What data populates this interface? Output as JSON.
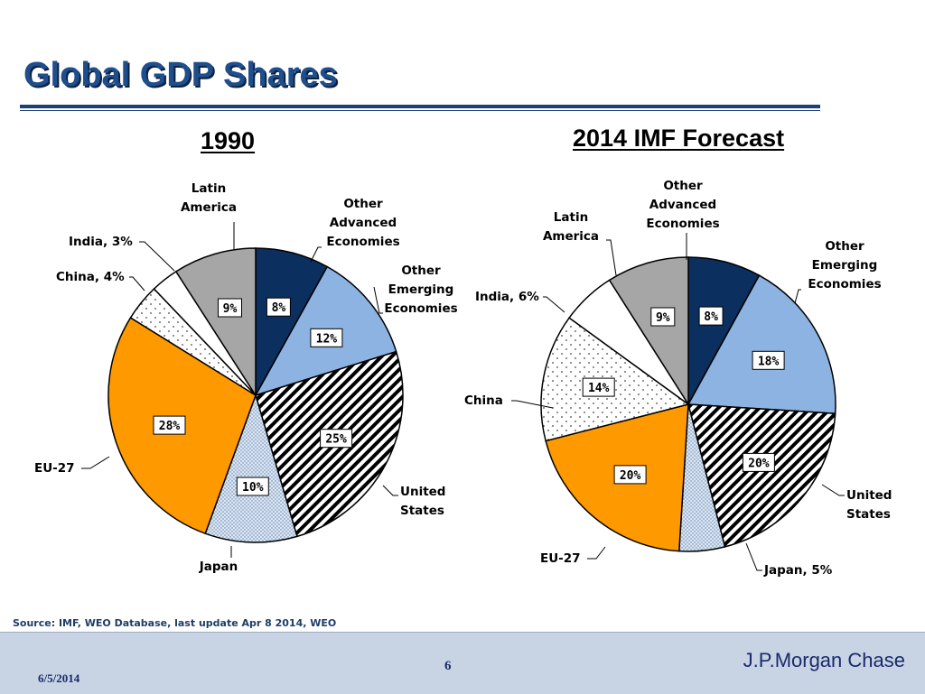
{
  "slide": {
    "title": "Global GDP Shares",
    "source": "Source: IMF, WEO Database, last update Apr 8 2014, WEO"
  },
  "footer": {
    "date": "6/5/2014",
    "page": "6",
    "brand": "J.P.Morgan Chase"
  },
  "colors": {
    "title": "#1f4e8c",
    "rule": "#1c3f75",
    "other_advanced": "#0b2f5e",
    "other_emerging": "#8db3e2",
    "united_states": "#ffffff-hatched",
    "japan": "#dbe5f1-dotted",
    "eu27": "#ff9900",
    "china": "#ffffff-dotted",
    "india": "#ffffff",
    "latin_america": "#a6a6a6",
    "footer_bg": "#c8d4e4"
  },
  "chart_data": [
    {
      "type": "pie",
      "title": "1990",
      "slices": [
        {
          "name": "Other\nAdvanced\nEconomies",
          "value": 8,
          "label": "8%"
        },
        {
          "name": "Other\nEmerging\nEconomies",
          "value": 12,
          "label": "12%"
        },
        {
          "name": "United\nStates",
          "value": 25,
          "label": "25%"
        },
        {
          "name": "Japan",
          "value": 10,
          "label": "10%"
        },
        {
          "name": "EU-27",
          "value": 28,
          "label": "28%"
        },
        {
          "name": "China, 4%",
          "value": 4,
          "label": ""
        },
        {
          "name": "India, 3%",
          "value": 3,
          "label": ""
        },
        {
          "name": "Latin\nAmerica",
          "value": 9,
          "label": "9%"
        }
      ]
    },
    {
      "type": "pie",
      "title": "2014  IMF Forecast",
      "slices": [
        {
          "name": "Other\nAdvanced\nEconomies",
          "value": 8,
          "label": "8%"
        },
        {
          "name": "Other\nEmerging\nEconomies",
          "value": 18,
          "label": "18%"
        },
        {
          "name": "United\nStates",
          "value": 20,
          "label": "20%"
        },
        {
          "name": "Japan, 5%",
          "value": 5,
          "label": ""
        },
        {
          "name": "EU-27",
          "value": 20,
          "label": "20%"
        },
        {
          "name": "China",
          "value": 14,
          "label": "14%"
        },
        {
          "name": "India, 6%",
          "value": 6,
          "label": ""
        },
        {
          "name": "Latin\nAmerica",
          "value": 9,
          "label": "9%"
        }
      ]
    }
  ]
}
